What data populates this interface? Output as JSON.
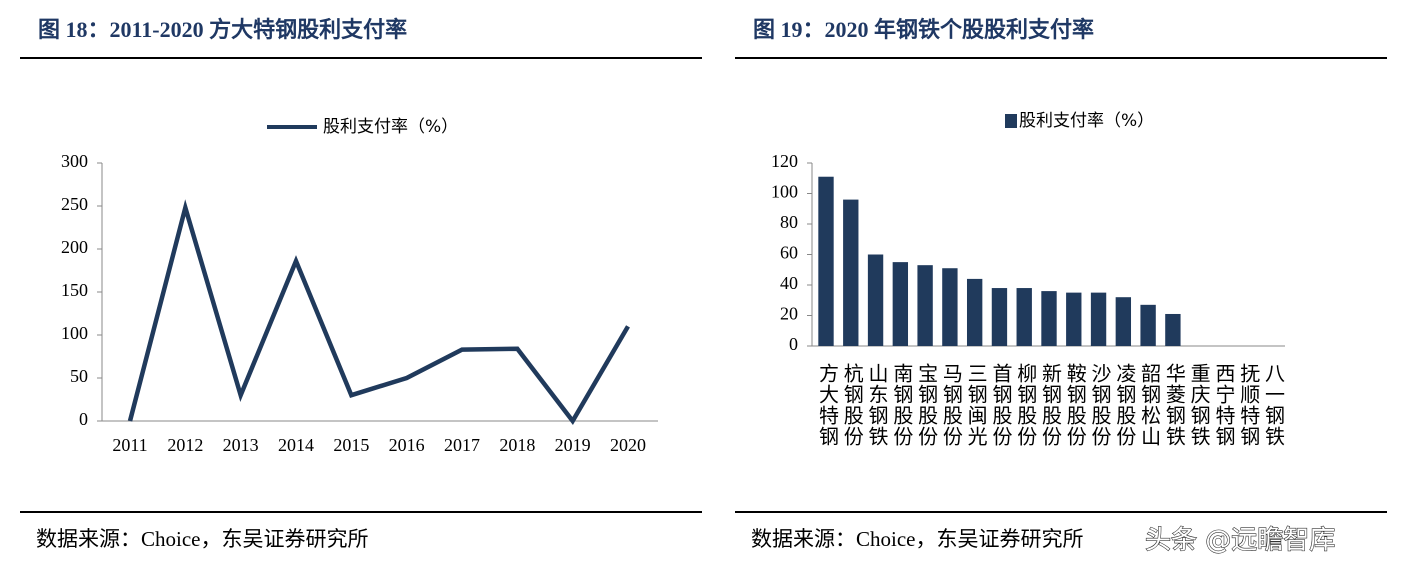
{
  "chart_data": [
    {
      "type": "line",
      "title": "图 18：2011-2020 方大特钢股利支付率",
      "source": "数据来源：Choice，东吴证券研究所",
      "categories": [
        "2011",
        "2012",
        "2013",
        "2014",
        "2015",
        "2016",
        "2017",
        "2018",
        "2019",
        "2020"
      ],
      "series": [
        {
          "name": "股利支付率（%）",
          "color": "#203a5c",
          "values": [
            0,
            248,
            30,
            186,
            30,
            50,
            83,
            84,
            0,
            110
          ]
        }
      ],
      "ylim": [
        0,
        300
      ],
      "yticks": [
        0,
        50,
        100,
        150,
        200,
        250,
        300
      ],
      "grid": false
    },
    {
      "type": "bar",
      "title": "图 19：2020 年钢铁个股股利支付率",
      "source": "数据来源：Choice，东吴证券研究所",
      "categories": [
        "方大特钢",
        "杭钢股份",
        "山东钢铁",
        "南钢股份",
        "宝钢股份",
        "马钢股份",
        "三钢闽光",
        "首钢股份",
        "柳钢股份",
        "新钢股份",
        "鞍钢股份",
        "沙钢股份",
        "凌钢股份",
        "韶钢松山",
        "华菱钢铁",
        "重庆钢铁",
        "西宁特钢",
        "抚顺特钢",
        "八一钢铁"
      ],
      "series": [
        {
          "name": "股利支付率（%）",
          "color": "#203a5c",
          "values": [
            111,
            96,
            60,
            55,
            53,
            51,
            44,
            38,
            38,
            36,
            35,
            35,
            32,
            27,
            21,
            null,
            null,
            null,
            null
          ]
        }
      ],
      "ylim": [
        0,
        120
      ],
      "yticks": [
        0,
        20,
        40,
        60,
        80,
        100,
        120
      ],
      "grid": false
    }
  ],
  "watermark": "头条 @远瞻智库"
}
